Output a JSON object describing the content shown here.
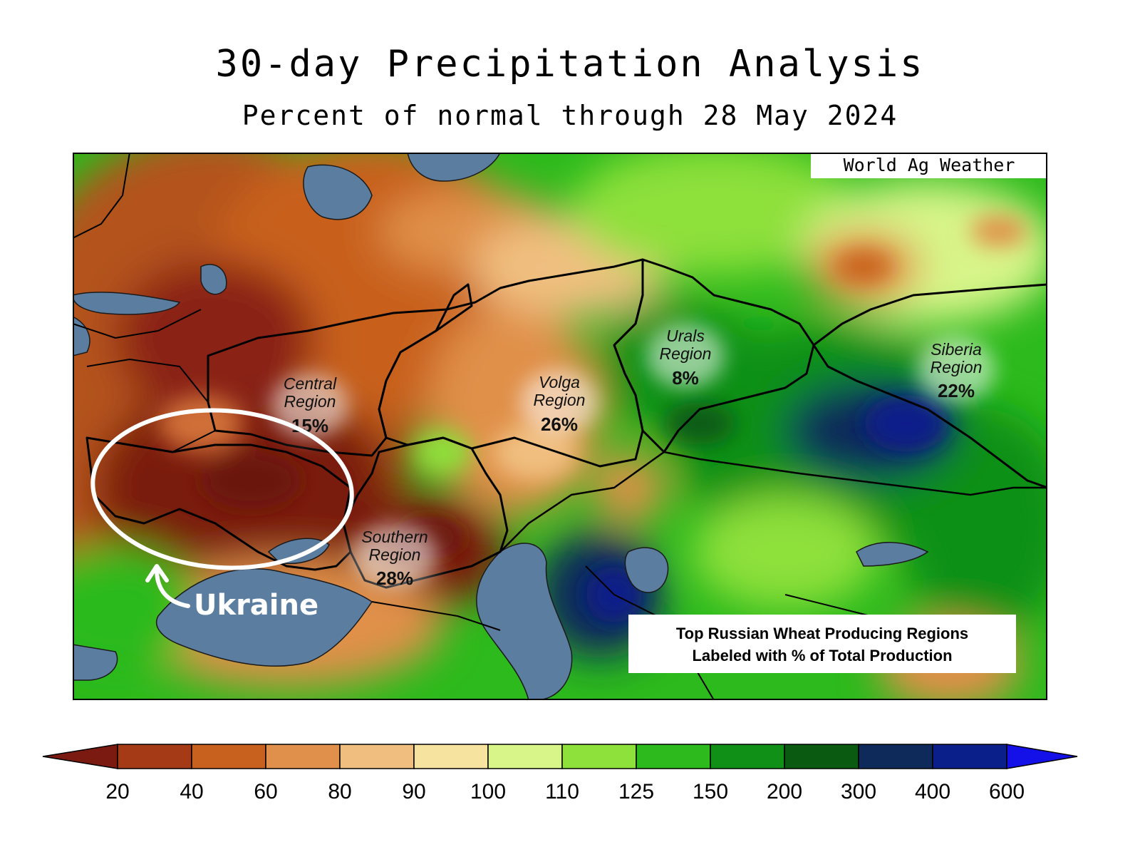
{
  "title": "30-day Precipitation Analysis",
  "subtitle": "Percent of normal through 28 May 2024",
  "credit": "World Ag Weather",
  "note": {
    "line1": "Top Russian Wheat Producing Regions",
    "line2": "Labeled with % of Total Production"
  },
  "regions": [
    {
      "name1": "Central",
      "name2": "Region",
      "pct": "15%"
    },
    {
      "name1": "Volga",
      "name2": "Region",
      "pct": "26%"
    },
    {
      "name1": "Urals",
      "name2": "Region",
      "pct": "8%"
    },
    {
      "name1": "Siberia",
      "name2": "Region",
      "pct": "22%"
    },
    {
      "name1": "Southern",
      "name2": "Region",
      "pct": "28%"
    }
  ],
  "annotation": {
    "label": "Ukraine"
  },
  "legend": {
    "ticks": [
      "20",
      "40",
      "60",
      "80",
      "90",
      "100",
      "110",
      "125",
      "150",
      "200",
      "300",
      "400",
      "600"
    ],
    "colors": [
      "#7a1a10",
      "#a53a16",
      "#c8601e",
      "#e0904a",
      "#f0bf80",
      "#f7e3a0",
      "#d8f58a",
      "#8ee03a",
      "#2cba1c",
      "#119018",
      "#0b5a12",
      "#0e2a5a",
      "#0b1f8a",
      "#1410e8"
    ]
  },
  "colors": {
    "water": "#5b7da0",
    "annotation": "#ffffff"
  }
}
